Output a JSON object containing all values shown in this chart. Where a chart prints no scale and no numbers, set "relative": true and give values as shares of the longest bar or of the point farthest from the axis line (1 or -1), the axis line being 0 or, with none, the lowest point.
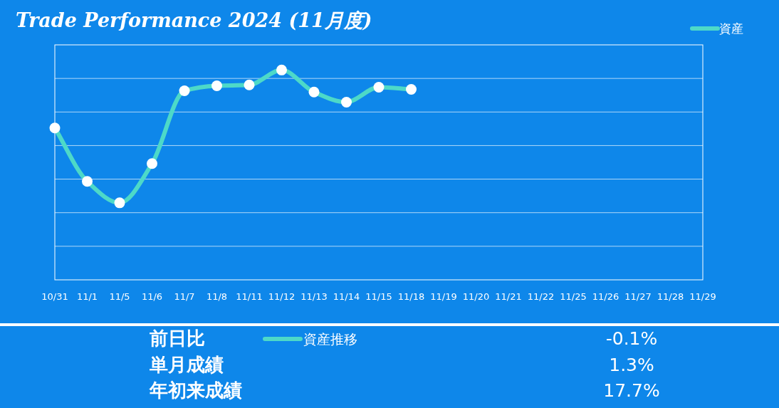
{
  "chart_data": [
    {
      "type": "line",
      "title": "Trade Performance 2024 (11月度)",
      "relative": true,
      "grid": "y",
      "legend": "top right",
      "marker": "circle",
      "line_style": "solid",
      "categories": [
        "10/31",
        "11/1",
        "11/5",
        "11/6",
        "11/7",
        "11/8",
        "11/11",
        "11/12",
        "11/13",
        "11/14",
        "11/15",
        "11/18",
        "11/19",
        "11/20",
        "11/21",
        "11/22",
        "11/25",
        "11/26",
        "11/27",
        "11/28",
        "11/29"
      ],
      "series": [
        {
          "name": "資産",
          "color": "#4dd9c8",
          "values": [
            0.724,
            0.469,
            0.367,
            0.554,
            0.901,
            0.925,
            0.929,
            1,
            0.895,
            0.847,
            0.918,
            0.908,
            null,
            null,
            null,
            null,
            null,
            null,
            null,
            null,
            null
          ]
        }
      ]
    },
    {
      "type": "other",
      "annotations": [
        "前日比",
        "-0.1%",
        "単月成績",
        "1.3%",
        "年初来成績",
        "17.7%"
      ],
      "legend_title": "資産推移",
      "color": "#4dd9c8"
    }
  ]
}
